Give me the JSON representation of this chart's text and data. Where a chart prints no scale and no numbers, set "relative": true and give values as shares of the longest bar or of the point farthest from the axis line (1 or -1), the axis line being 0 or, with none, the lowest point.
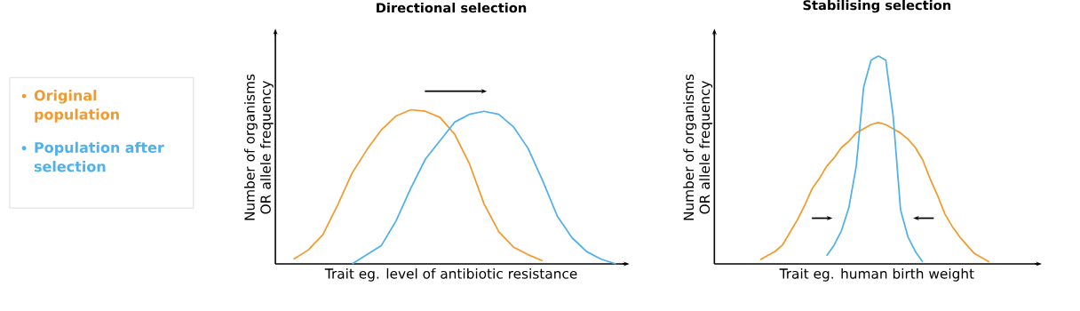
{
  "chart_data": [
    {
      "type": "line",
      "title": "Directional selection",
      "xlabel": "Trait eg. level of antibiotic resistance",
      "ylabel": "Number of organisms OR allele frequency",
      "relative": true,
      "legend": "left",
      "marker": "none",
      "categories": [
        null,
        null,
        null,
        null,
        null,
        null,
        null,
        null,
        null,
        null,
        null,
        null,
        null,
        null,
        null,
        null,
        null,
        null,
        null,
        null,
        null,
        null,
        null,
        null
      ],
      "series": [
        {
          "name": "Original population",
          "color": "#f29a2e",
          "values": [
            null,
            0.03,
            0.09,
            0.19,
            0.38,
            0.59,
            0.74,
            0.87,
            0.96,
            1.0,
            0.99,
            0.95,
            0.84,
            0.65,
            0.39,
            0.21,
            0.11,
            0.06,
            0.02,
            null,
            null,
            null,
            null,
            null
          ]
        },
        {
          "name": "Population after selection",
          "color": "#4fb0ec",
          "values": [
            null,
            null,
            null,
            null,
            null,
            0.0,
            0.06,
            0.12,
            0.28,
            0.49,
            0.68,
            0.8,
            0.92,
            0.97,
            0.99,
            0.97,
            0.89,
            0.75,
            0.54,
            0.31,
            0.17,
            0.08,
            0.03,
            0.0
          ]
        }
      ]
    },
    {
      "type": "line",
      "title": "Stabilising selection",
      "xlabel": "Trait eg. human birth weight",
      "ylabel": "Number of organisms OR allele frequency",
      "relative": true,
      "marker": "none",
      "categories": [
        null,
        null,
        null,
        null,
        null,
        null,
        null,
        null,
        null,
        null,
        null,
        null,
        null,
        null,
        null,
        null,
        null,
        null,
        null,
        null,
        null,
        null,
        null,
        null,
        null,
        null,
        null,
        null,
        null,
        null,
        null,
        null,
        null,
        null,
        null,
        null,
        null,
        null,
        null,
        null,
        null,
        null,
        null,
        null
      ],
      "series": [
        {
          "color": "#f29a2e",
          "values": [
            null,
            null,
            null,
            null,
            null,
            null,
            0.02,
            0.04,
            0.06,
            0.09,
            0.15,
            0.21,
            0.28,
            0.36,
            0.41,
            0.47,
            0.51,
            0.56,
            0.59,
            0.63,
            0.65,
            0.67,
            0.68,
            0.67,
            0.65,
            0.63,
            0.6,
            0.56,
            0.5,
            0.41,
            0.33,
            0.24,
            0.18,
            0.13,
            0.09,
            0.05,
            0.03,
            0.01,
            null,
            null,
            null,
            null,
            null,
            null
          ]
        },
        {
          "color": "#4fb0ec",
          "values": [
            null,
            null,
            null,
            null,
            null,
            null,
            null,
            null,
            null,
            null,
            null,
            null,
            null,
            null,
            null,
            0.04,
            0.09,
            0.16,
            0.27,
            0.47,
            0.85,
            0.98,
            1.0,
            0.98,
            0.71,
            0.26,
            0.13,
            0.06,
            0.01,
            null,
            null,
            null,
            null,
            null,
            null,
            null,
            null,
            null,
            null,
            null,
            null,
            null,
            null,
            null
          ]
        }
      ]
    }
  ]
}
